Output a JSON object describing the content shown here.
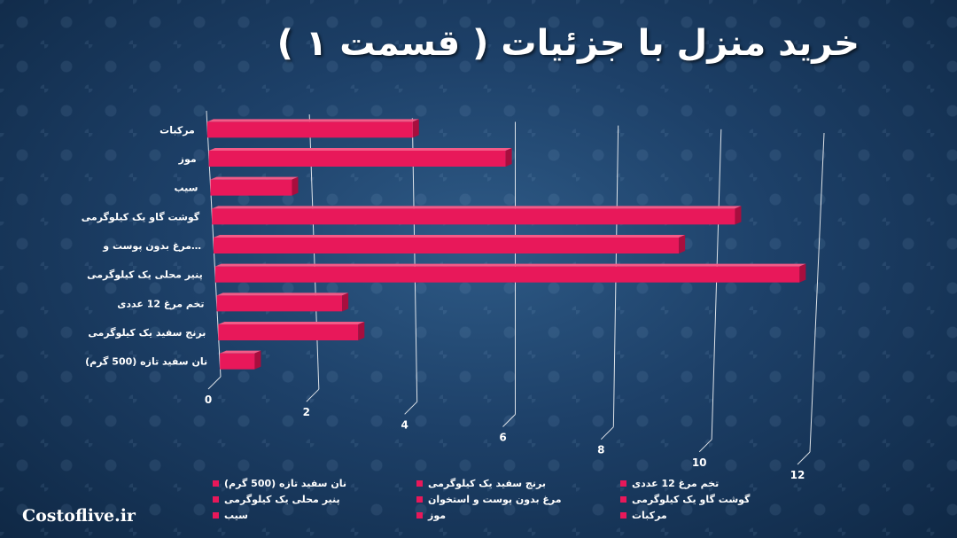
{
  "title": "خرید منزل با جزئیات ( قسمت ۱ )",
  "watermark": "Costoflive.ir",
  "colors": {
    "bar_front": "#e8185a",
    "bar_top": "#f35a87",
    "bar_side": "#a80e3e",
    "grid": "#ffffff"
  },
  "chart_data": {
    "type": "bar",
    "orientation": "horizontal",
    "perspective_3d": true,
    "categories": [
      "مرکبات",
      "موز",
      "سیب",
      "گوشت گاو یک کیلوگرمی",
      "مرغ بدون پوست و…",
      "پنیر محلی یک کیلوگرمی",
      "تخم مرغ 12 عددی",
      "برنج سفید یک کیلوگرمی",
      "نان سفید تازه (500 گرم)"
    ],
    "values": [
      4,
      5.8,
      1.6,
      10.3,
      9.2,
      11.6,
      2.5,
      2.8,
      0.7
    ],
    "xlim": [
      0,
      12
    ],
    "xticks": [
      "0",
      "2",
      "4",
      "6",
      "8",
      "10",
      "12"
    ],
    "grid": true,
    "legend_position": "bottom",
    "legend": [
      "نان سفید تازه (500 گرم)",
      "برنج سفید یک کیلوگرمی",
      "تخم مرغ 12 عددی",
      "پنیر محلی یک کیلوگرمی",
      "مرغ بدون پوست و استخوان",
      "گوشت گاو یک کیلوگرمی",
      "سیب",
      "موز",
      "مرکبات"
    ]
  }
}
